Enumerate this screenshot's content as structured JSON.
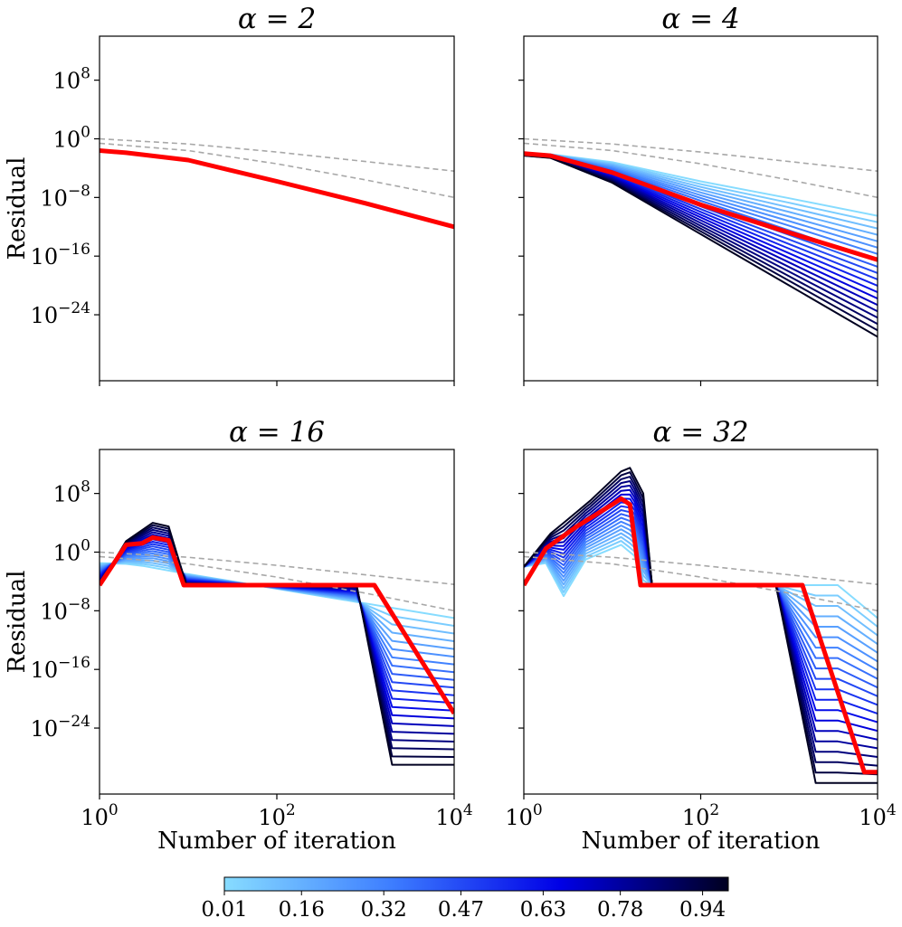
{
  "chart_data": {
    "type": "line",
    "figure": "Residual vs number of iteration for four alpha values",
    "panels": [
      {
        "title": "α = 2",
        "xlabel": "",
        "ylabel": "Residual",
        "xscale": "log10",
        "xlim_log10": [
          0,
          4
        ],
        "ylim_log10": [
          -33,
          14
        ],
        "yticks": [
          {
            "exp": 8,
            "label": "10^8"
          },
          {
            "exp": 0,
            "label": "10^0"
          },
          {
            "exp": -8,
            "label": "10^-8"
          },
          {
            "exp": -16,
            "label": "10^-16"
          },
          {
            "exp": -24,
            "label": "10^-24"
          }
        ],
        "xticks": [],
        "reference_lines_log10": [
          {
            "style": "dashed-gray",
            "points": [
              [
                0,
                0.0
              ],
              [
                1,
                -0.7
              ],
              [
                2,
                -1.8
              ],
              [
                3,
                -3.1
              ],
              [
                4,
                -4.4
              ]
            ]
          },
          {
            "style": "dashed-gray",
            "points": [
              [
                0,
                -0.6
              ],
              [
                1,
                -1.6
              ],
              [
                2,
                -3.4
              ],
              [
                3,
                -5.6
              ],
              [
                4,
                -8.0
              ]
            ]
          }
        ],
        "sweep": {
          "param_range": [
            0.01,
            0.99
          ],
          "n_curves": 20,
          "curves_log10": "identical to highlighted curve",
          "curves_start": [
            [
              0,
              -1.6
            ],
            [
              1,
              -2.9
            ],
            [
              2,
              -5.8
            ],
            [
              3,
              -8.8
            ],
            [
              4,
              -12.0
            ]
          ],
          "curves_end": [
            [
              0,
              -1.6
            ],
            [
              1,
              -2.9
            ],
            [
              2,
              -5.8
            ],
            [
              3,
              -8.8
            ],
            [
              4,
              -12.0
            ]
          ]
        },
        "highlight": {
          "color": "#ff0000",
          "points": [
            [
              0,
              -1.6
            ],
            [
              0.3,
              -1.9
            ],
            [
              1,
              -2.9
            ],
            [
              2,
              -5.8
            ],
            [
              3,
              -8.8
            ],
            [
              4,
              -12.0
            ]
          ]
        }
      },
      {
        "title": "α = 4",
        "xlabel": "",
        "ylabel": "",
        "xscale": "log10",
        "xlim_log10": [
          0,
          4
        ],
        "ylim_log10": [
          -33,
          14
        ],
        "yticks": [],
        "xticks": [],
        "reference_lines_log10": [
          {
            "style": "dashed-gray",
            "points": [
              [
                0,
                0.0
              ],
              [
                1,
                -0.7
              ],
              [
                2,
                -1.8
              ],
              [
                3,
                -3.1
              ],
              [
                4,
                -4.4
              ]
            ]
          },
          {
            "style": "dashed-gray",
            "points": [
              [
                0,
                -0.6
              ],
              [
                1,
                -1.6
              ],
              [
                2,
                -3.4
              ],
              [
                3,
                -5.6
              ],
              [
                4,
                -8.0
              ]
            ]
          }
        ],
        "sweep": {
          "param_range": [
            0.01,
            0.99
          ],
          "n_curves": 20,
          "curves_start": [
            [
              0,
              -2.0
            ],
            [
              0.3,
              -2.1
            ],
            [
              1,
              -3.2
            ],
            [
              2,
              -5.8
            ],
            [
              3,
              -8.1
            ],
            [
              4,
              -10.5
            ]
          ],
          "curves_end": [
            [
              0,
              -2.3
            ],
            [
              0.3,
              -2.6
            ],
            [
              1,
              -6.0
            ],
            [
              2,
              -13.0
            ],
            [
              3,
              -20.0
            ],
            [
              4,
              -27.0
            ]
          ]
        },
        "highlight": {
          "color": "#ff0000",
          "points": [
            [
              0,
              -2.0
            ],
            [
              0.3,
              -2.3
            ],
            [
              1,
              -4.6
            ],
            [
              2,
              -9.0
            ],
            [
              3,
              -12.8
            ],
            [
              4,
              -16.5
            ]
          ]
        }
      },
      {
        "title": "α = 16",
        "xlabel": "Number of iteration",
        "ylabel": "Residual",
        "xscale": "log10",
        "xlim_log10": [
          0,
          4
        ],
        "ylim_log10": [
          -33,
          14
        ],
        "yticks": [
          {
            "exp": 8,
            "label": "10^8"
          },
          {
            "exp": 0,
            "label": "10^0"
          },
          {
            "exp": -8,
            "label": "10^-8"
          },
          {
            "exp": -16,
            "label": "10^-16"
          },
          {
            "exp": -24,
            "label": "10^-24"
          }
        ],
        "xticks": [
          {
            "exp": 0,
            "label": "10^0"
          },
          {
            "exp": 2,
            "label": "10^2"
          },
          {
            "exp": 4,
            "label": "10^4"
          }
        ],
        "reference_lines_log10": [
          {
            "style": "dashed-gray",
            "points": [
              [
                0,
                0.0
              ],
              [
                1,
                -0.7
              ],
              [
                2,
                -1.8
              ],
              [
                3,
                -3.1
              ],
              [
                4,
                -4.4
              ]
            ]
          },
          {
            "style": "dashed-gray",
            "points": [
              [
                0,
                -0.6
              ],
              [
                1,
                -1.6
              ],
              [
                2,
                -3.4
              ],
              [
                3,
                -5.6
              ],
              [
                4,
                -8.0
              ]
            ]
          }
        ],
        "sweep": {
          "param_range": [
            0.01,
            0.99
          ],
          "n_curves": 20,
          "curves_start": [
            [
              0,
              -1.5
            ],
            [
              0.3,
              -1.6
            ],
            [
              0.5,
              -1.9
            ],
            [
              1,
              -3.0
            ],
            [
              2,
              -5.0
            ],
            [
              3,
              -7.0
            ],
            [
              4,
              -9.0
            ]
          ],
          "curves_end": [
            [
              0,
              -4.5
            ],
            [
              0.3,
              1.5
            ],
            [
              0.6,
              4.0
            ],
            [
              0.78,
              3.5
            ],
            [
              0.98,
              -4.5
            ],
            [
              2.9,
              -4.5
            ],
            [
              3.3,
              -29.0
            ],
            [
              4,
              -29.0
            ]
          ]
        },
        "highlight": {
          "color": "#ff0000",
          "points": [
            [
              0,
              -4.5
            ],
            [
              0.3,
              1.0
            ],
            [
              0.48,
              1.2
            ],
            [
              0.6,
              2.0
            ],
            [
              0.78,
              1.6
            ],
            [
              0.95,
              -4.5
            ],
            [
              3.1,
              -4.5
            ],
            [
              4,
              -22.0
            ]
          ]
        }
      },
      {
        "title": "α = 32",
        "xlabel": "Number of iteration",
        "ylabel": "",
        "xscale": "log10",
        "xlim_log10": [
          0,
          4
        ],
        "ylim_log10": [
          -33,
          14
        ],
        "yticks": [],
        "xticks": [
          {
            "exp": 0,
            "label": "10^0"
          },
          {
            "exp": 2,
            "label": "10^2"
          },
          {
            "exp": 4,
            "label": "10^4"
          }
        ],
        "reference_lines_log10": [
          {
            "style": "dashed-gray",
            "points": [
              [
                0,
                0.0
              ],
              [
                1,
                -0.7
              ],
              [
                2,
                -1.8
              ],
              [
                3,
                -3.1
              ],
              [
                4,
                -4.4
              ]
            ]
          },
          {
            "style": "dashed-gray",
            "points": [
              [
                0,
                -0.6
              ],
              [
                1,
                -1.6
              ],
              [
                2,
                -3.4
              ],
              [
                3,
                -5.6
              ],
              [
                4,
                -8.0
              ]
            ]
          }
        ],
        "sweep": {
          "param_range": [
            0.01,
            0.99
          ],
          "n_curves": 20,
          "curves_start": [
            [
              0,
              -2.0
            ],
            [
              0.25,
              -1.5
            ],
            [
              0.45,
              -6.0
            ],
            [
              0.7,
              -1.0
            ],
            [
              1.1,
              1.0
            ],
            [
              1.25,
              -0.5
            ],
            [
              1.35,
              -4.5
            ],
            [
              2.8,
              -4.5
            ],
            [
              3.55,
              -4.5
            ],
            [
              4,
              -9.0
            ]
          ],
          "curves_end": [
            [
              0,
              -2.0
            ],
            [
              0.3,
              2.5
            ],
            [
              0.75,
              7.0
            ],
            [
              1.1,
              11.0
            ],
            [
              1.2,
              11.5
            ],
            [
              1.35,
              8.0
            ],
            [
              1.45,
              -4.5
            ],
            [
              2.85,
              -4.5
            ],
            [
              3.3,
              -31.5
            ],
            [
              4,
              -31.5
            ]
          ]
        },
        "highlight": {
          "color": "#ff0000",
          "points": [
            [
              0,
              -4.5
            ],
            [
              0.25,
              0.5
            ],
            [
              0.6,
              3.5
            ],
            [
              1.0,
              6.5
            ],
            [
              1.1,
              7.3
            ],
            [
              1.2,
              6.5
            ],
            [
              1.32,
              -4.5
            ],
            [
              3.15,
              -4.5
            ],
            [
              3.85,
              -30.0
            ],
            [
              4,
              -30.0
            ]
          ]
        }
      }
    ],
    "colorbar": {
      "orientation": "horizontal",
      "range": [
        0.01,
        0.99
      ],
      "colors": [
        "#87dcff",
        "#3d7dff",
        "#0000e6",
        "#000020"
      ],
      "ticks": [
        "0.01",
        "0.16",
        "0.32",
        "0.47",
        "0.63",
        "0.78",
        "0.94"
      ]
    }
  }
}
